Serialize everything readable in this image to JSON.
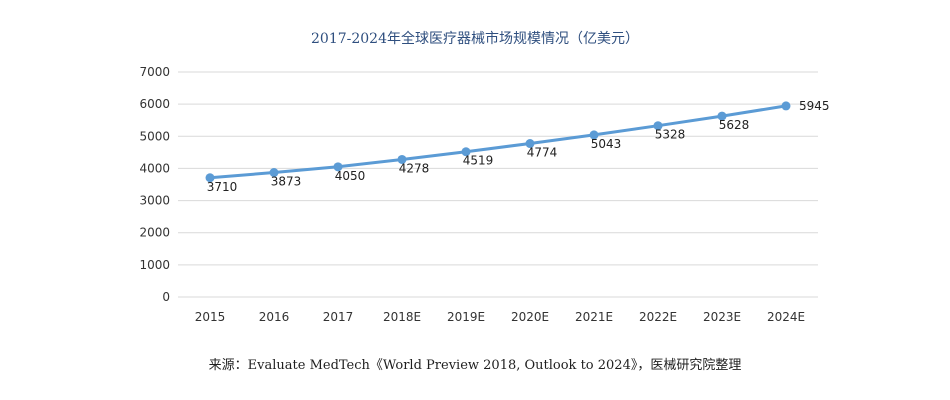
{
  "chart_data": {
    "type": "line",
    "title": "2017-2024年全球医疗器械市场规模情况（亿美元）",
    "xlabel": "",
    "ylabel": "",
    "categories": [
      "2015",
      "2016",
      "2017",
      "2018E",
      "2019E",
      "2020E",
      "2021E",
      "2022E",
      "2023E",
      "2024E"
    ],
    "series": [
      {
        "values": [
          3710,
          3873,
          4050,
          4278,
          4519,
          4774,
          5043,
          5328,
          5628,
          5945
        ]
      }
    ],
    "ylim": [
      0,
      7000
    ],
    "yticks": [
      0,
      1000,
      2000,
      3000,
      4000,
      5000,
      6000,
      7000
    ],
    "grid": true,
    "legend": "none",
    "color": "#5b9bd5"
  },
  "source": "来源：Evaluate MedTech《World Preview 2018, Outlook to 2024》，医械研究院整理"
}
